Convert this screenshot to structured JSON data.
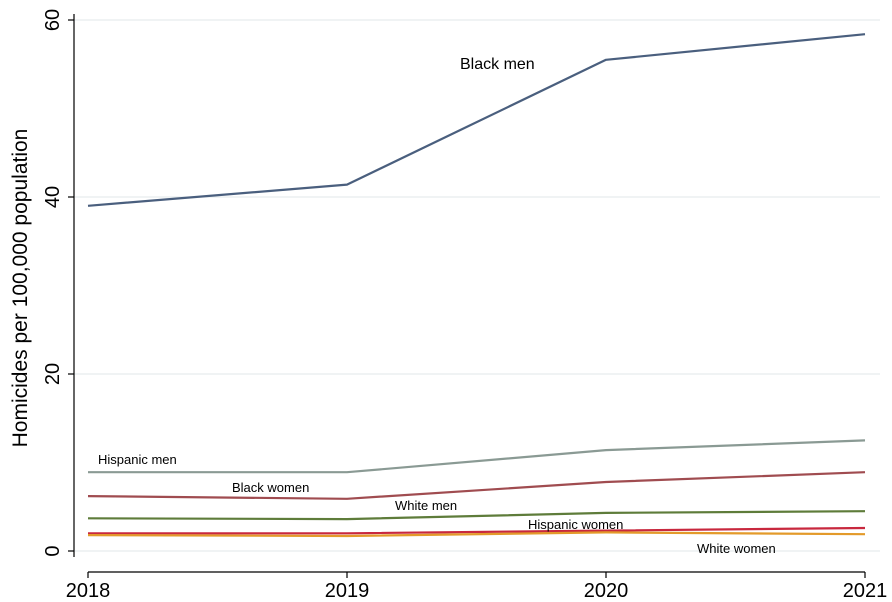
{
  "chart_data": {
    "type": "line",
    "title": "",
    "xlabel": "",
    "ylabel": "Homicides per 100,000 population",
    "x": [
      "2018",
      "2019",
      "2020",
      "2021"
    ],
    "ylim": [
      0,
      60
    ],
    "yticks": [
      0,
      20,
      40,
      60
    ],
    "grid": true,
    "legend": "inline labels",
    "series": [
      {
        "name": "Black men",
        "color": "#4a5f7e",
        "values": [
          39.0,
          41.4,
          55.5,
          58.4
        ]
      },
      {
        "name": "Hispanic men",
        "color": "#8a9a94",
        "values": [
          8.9,
          8.9,
          11.4,
          12.5
        ]
      },
      {
        "name": "Black women",
        "color": "#a04c50",
        "values": [
          6.2,
          5.9,
          7.8,
          8.9
        ]
      },
      {
        "name": "White men",
        "color": "#5e7c3a",
        "values": [
          3.7,
          3.6,
          4.3,
          4.5
        ]
      },
      {
        "name": "Hispanic women",
        "color": "#c8283e",
        "values": [
          2.0,
          2.0,
          2.3,
          2.6
        ]
      },
      {
        "name": "White women",
        "color": "#e39a2a",
        "values": [
          1.8,
          1.7,
          2.1,
          1.9
        ]
      }
    ]
  }
}
